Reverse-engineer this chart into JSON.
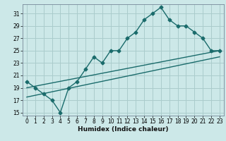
{
  "xlabel": "Humidex (Indice chaleur)",
  "background_color": "#cce8e8",
  "grid_color": "#aacccc",
  "line_color": "#1a6b6b",
  "xlim": [
    -0.5,
    23.5
  ],
  "ylim": [
    14.5,
    32.5
  ],
  "xticks": [
    0,
    1,
    2,
    3,
    4,
    5,
    6,
    7,
    8,
    9,
    10,
    11,
    12,
    13,
    14,
    15,
    16,
    17,
    18,
    19,
    20,
    21,
    22,
    23
  ],
  "yticks": [
    15,
    17,
    19,
    21,
    23,
    25,
    27,
    29,
    31
  ],
  "series1_x": [
    0,
    1,
    2,
    3,
    4,
    5,
    6,
    7,
    8,
    9,
    10,
    11,
    12,
    13,
    14,
    15,
    16,
    17,
    18,
    19,
    20,
    21,
    22,
    23
  ],
  "series1_y": [
    20,
    19,
    18,
    17,
    15,
    19,
    20,
    22,
    24,
    23,
    25,
    25,
    27,
    28,
    30,
    31,
    32,
    30,
    29,
    29,
    28,
    27,
    25,
    25
  ],
  "series2_x": [
    0,
    23
  ],
  "series2_y": [
    19,
    25
  ],
  "series3_x": [
    0,
    23
  ],
  "series3_y": [
    17.5,
    24
  ],
  "tick_fontsize": 5.5,
  "xlabel_fontsize": 6.5
}
